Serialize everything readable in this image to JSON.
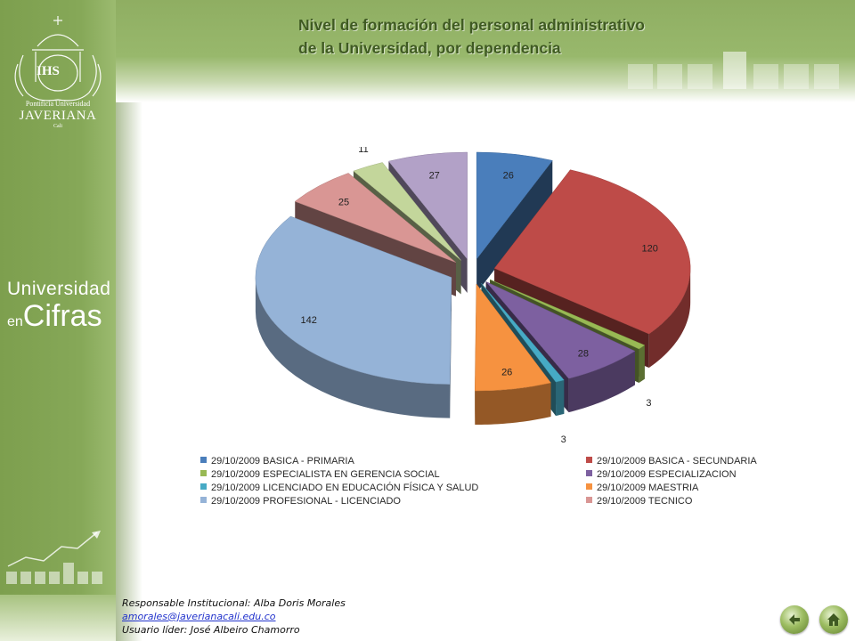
{
  "header": {
    "title_line1": "Nivel de formación del personal administrativo",
    "title_line2": "de la Universidad, por dependencia"
  },
  "sidebar": {
    "logo": {
      "initials": "IHS",
      "name_line1": "Pontificia Universidad",
      "name_line2": "JAVERIANA",
      "name_line3": "Cali",
      "icon": "university-seal-icon"
    },
    "brand_line1": "Universidad",
    "brand_line2": "en",
    "brand_line3": "Cifras",
    "growth_icon": "growth-chart-icon"
  },
  "chart_data": {
    "type": "pie",
    "title": "",
    "exploded": true,
    "three_d": true,
    "legend_position": "bottom",
    "slices": [
      {
        "label": "29/10/2009 BASICA - PRIMARIA",
        "value": 26,
        "color": "#4a7ebb"
      },
      {
        "label": "29/10/2009 BASICA - SECUNDARIA",
        "value": 120,
        "color": "#be4b48"
      },
      {
        "label": "29/10/2009 ESPECIALISTA EN GERENCIA SOCIAL",
        "value": 3,
        "color": "#98b954"
      },
      {
        "label": "29/10/2009 ESPECIALIZACION",
        "value": 28,
        "color": "#7d60a0"
      },
      {
        "label": "29/10/2009 LICENCIADO EN EDUCACIÓN FÍSICA Y SALUD",
        "value": 3,
        "color": "#46aac5"
      },
      {
        "label": "29/10/2009 MAESTRIA",
        "value": 26,
        "color": "#f69240"
      },
      {
        "label": "29/10/2009 PROFESIONAL - LICENCIADO",
        "value": 142,
        "color": "#95b3d7"
      },
      {
        "label": "29/10/2009 TECNICO",
        "value": 25,
        "color": "#d99694"
      },
      {
        "label": "",
        "value": 11,
        "color": "#c3d69b"
      },
      {
        "label": "",
        "value": 27,
        "color": "#b2a1c7"
      }
    ]
  },
  "footer": {
    "responsible": "Responsable Institucional: Alba Doris Morales",
    "email": "amorales@javerianacali.edu.co",
    "leader": "Usuario líder: José Albeiro Chamorro"
  },
  "nav": {
    "back_icon": "back-arrow-icon",
    "home_icon": "home-icon"
  }
}
